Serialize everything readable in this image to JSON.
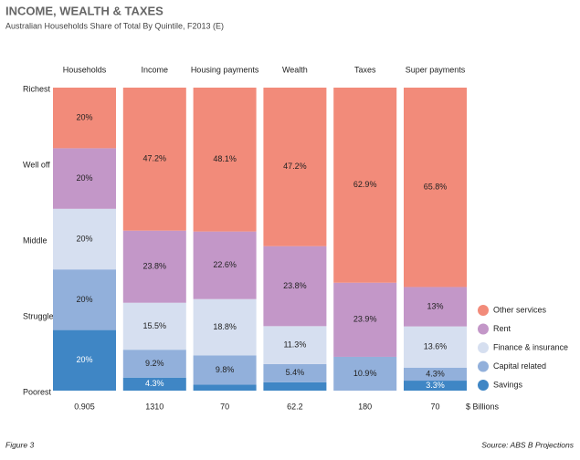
{
  "chart_data": {
    "type": "stacked_bar_100",
    "title": "INCOME, WEALTH & TAXES",
    "subtitle": "Australian Households  Share of Total By Quintile, F2013 (E)",
    "categories": [
      "Households",
      "Income",
      "Housing payments",
      "Wealth",
      "Taxes",
      "Super payments"
    ],
    "quintiles": [
      "Richest",
      "Well off",
      "Middle",
      "Struggle",
      "Poorest"
    ],
    "series": [
      {
        "name": "Savings",
        "color": "#3f86c5",
        "values": [
          20,
          4.3,
          2,
          2.5,
          0,
          3.3
        ],
        "value_labels": [
          "20%",
          "4.3%",
          null,
          null,
          null,
          "3.3%"
        ]
      },
      {
        "name": "Capital related",
        "color": "#92b0db",
        "values": [
          20,
          9.2,
          9.8,
          5.4,
          10.9,
          4.3
        ],
        "value_labels": [
          "20%",
          "9.2%",
          "9.8%",
          "5.4%",
          "10.9%",
          "4.3%"
        ]
      },
      {
        "name": "Finance & insurance",
        "color": "#d6dff0",
        "values": [
          20,
          15.5,
          18.8,
          11.3,
          0,
          13.6
        ],
        "value_labels": [
          "20%",
          "15.5%",
          "18.8%",
          "11.3%",
          null,
          "13.6%"
        ]
      },
      {
        "name": "Rent",
        "color": "#c397c8",
        "values": [
          20,
          23.8,
          22.6,
          23.8,
          23.9,
          13
        ],
        "value_labels": [
          "20%",
          "23.8%",
          "22.6%",
          "23.8%",
          "23.9%",
          "13%"
        ]
      },
      {
        "name": "Other services",
        "color": "#f28b7a",
        "values": [
          20,
          47.2,
          48.1,
          47.2,
          62.9,
          65.8
        ],
        "value_labels": [
          "20%",
          "47.2%",
          "48.1%",
          "47.2%",
          "62.9%",
          "65.8%"
        ]
      }
    ],
    "totals": [
      0.905,
      1310,
      70,
      62.2,
      180,
      70
    ],
    "totals_unit": "$ Billions",
    "figure_label": "Figure 3",
    "source": "Source: ABS B Projections"
  }
}
